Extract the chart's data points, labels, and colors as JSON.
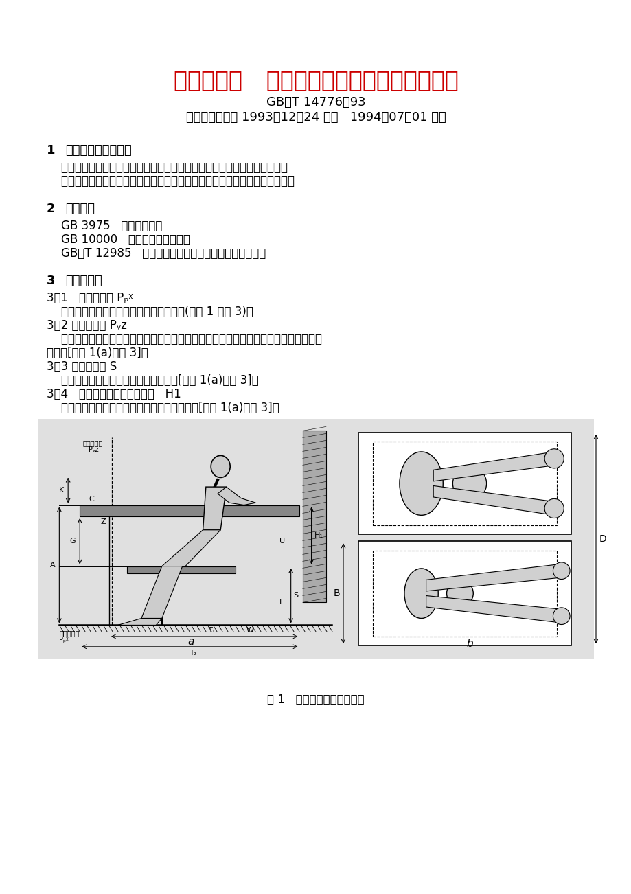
{
  "title_main": "人类工效学   工作岗位尺寸设计原则及其数值",
  "title_sub1": "GB／T 14776－93",
  "title_sub2": "国家技术监督局 1993－12－24 批准   1994－07－01 实施",
  "title_color": "#cc0000",
  "title_fontsize": 24,
  "sub_fontsize": 13,
  "body_fontsize": 12,
  "heading_fontsize": 13,
  "bg_color": "#ffffff",
  "text_color": "#000000",
  "sec1_heading": "主题内容与适用范围",
  "sec1_num": "1",
  "sec1_lines": [
    "    本标准规定了在生产区域内工作岗位尺寸的人类工效学设计原则及其数值。",
    "    本标准适用于以手工操作为主的坐姿、立姿和坐立姿势交替工作岗位的设计。"
  ],
  "sec2_heading": "引用标准",
  "sec2_num": "2",
  "sec2_lines": [
    "    GB 3975   人体测量术语",
    "    GB 10000   中国成年人人体尺寸",
    "    GB／T 12985   在产品设计中应用人体尺寸百分位数通则"
  ],
  "sec3_heading": "术语和符号",
  "sec3_num": "3",
  "sec3_lines": [
    "3．1   水平基准面 Pₚᵡ",
    "    在工作岗位，人站立的或座椅放置的平面(见图 1 至图 3)。",
    "3．2 垂直基准面 Pᵧᴢ",
    "    与人体冠状面平行，与水平基准面相垂直，并且通过工作岗位上限制人体向前的点所在",
    "的平面[见图 1(a)至图 3]。",
    "3．3 座位面高度 S",
    "    座位设计平面与水平基准面之间的距离[见图 1(a)和图 3]。",
    "3．4   坐姿工作岗位的相对高度   H1",
    "    坐姿时手操作平面与座位设计平面之间的距离[见图 1(a)和图 3]。"
  ],
  "figure_caption": "图 1   坐姿工作岗位尺寸图示"
}
